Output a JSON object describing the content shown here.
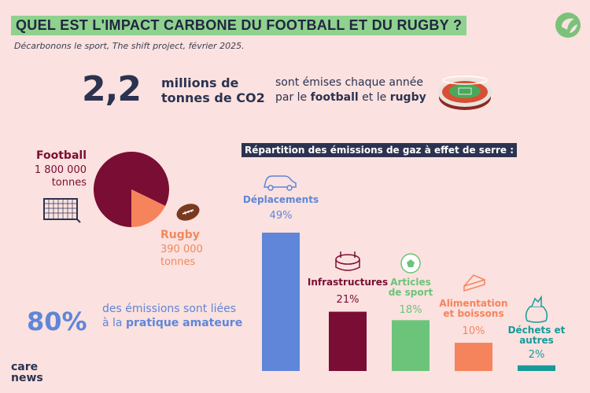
{
  "header": {
    "title": "QUEL EST L'IMPACT CARBONE DU FOOTBALL ET DU RUGBY ?",
    "subtitle": "Décarbonons le sport, The shift project, février 2025."
  },
  "headline": {
    "number": "2,2",
    "unit": "millions de tonnes de CO2",
    "desc_pre": "sont émises chaque année par le ",
    "desc_football": "football",
    "desc_mid": " et le ",
    "desc_rugby": "rugby"
  },
  "split": {
    "football_label": "Football",
    "football_value": "1 800 000 tonnes",
    "rugby_label": "Rugby",
    "rugby_value": "390 000 tonnes"
  },
  "amateur": {
    "percent": "80%",
    "desc_pre": "des émissions sont liées à la ",
    "desc_bold": "pratique amateure"
  },
  "brand": {
    "name_line1": "care",
    "name_line2": "news"
  },
  "chart_data": [
    {
      "type": "pie",
      "categories": [
        "Football",
        "Rugby"
      ],
      "values": [
        1800000,
        390000
      ],
      "colors": [
        "#7a0d34",
        "#f5845c"
      ]
    },
    {
      "type": "bar",
      "title": "Répartition des émissions de gaz à effet de serre :",
      "categories": [
        "Déplacements",
        "Infrastructures",
        "Articles de sport",
        "Alimentation et boissons",
        "Déchets et autres"
      ],
      "value_labels": [
        "49%",
        "21%",
        "18%",
        "10%",
        "2%"
      ],
      "values": [
        49,
        21,
        18,
        10,
        2
      ],
      "colors": [
        "#5f86d8",
        "#7a0d34",
        "#6cc47a",
        "#f5845c",
        "#179a9a"
      ],
      "icons": [
        "car-icon",
        "stadium-icon",
        "soccer-ball-icon",
        "sandwich-icon",
        "trash-bag-icon"
      ]
    }
  ]
}
